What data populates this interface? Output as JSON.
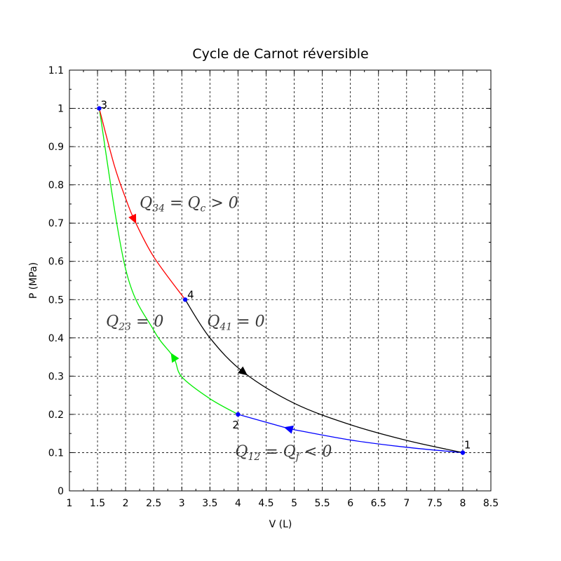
{
  "chart_data": {
    "type": "line",
    "title": "Cycle de Carnot réversible",
    "xlabel": "V (L)",
    "ylabel": "P (MPa)",
    "xlim": [
      1,
      8.5
    ],
    "ylim": [
      0,
      1.1
    ],
    "x_ticks": [
      1,
      1.5,
      2,
      2.5,
      3,
      3.5,
      4,
      4.5,
      5,
      5.5,
      6,
      6.5,
      7,
      7.5,
      8,
      8.5
    ],
    "x_tick_labels": [
      "1",
      "1.5",
      "2",
      "2.5",
      "3",
      "3.5",
      "4",
      "4.5",
      "5",
      "5.5",
      "6",
      "6.5",
      "7",
      "7.5",
      "8",
      "8.5"
    ],
    "y_ticks": [
      0,
      0.1,
      0.2,
      0.3,
      0.4,
      0.5,
      0.6,
      0.7,
      0.8,
      0.9,
      1,
      1.1
    ],
    "y_tick_labels": [
      "0",
      "0.1",
      "0.2",
      "0.3",
      "0.4",
      "0.5",
      "0.6",
      "0.7",
      "0.8",
      "0.9",
      "1",
      "1.1"
    ],
    "grid": true,
    "points": [
      {
        "label": "1",
        "x": 8,
        "y": 0.1
      },
      {
        "label": "2",
        "x": 4,
        "y": 0.2
      },
      {
        "label": "3",
        "x": 1.53,
        "y": 1.0
      },
      {
        "label": "4",
        "x": 3.06,
        "y": 0.5
      }
    ],
    "series": [
      {
        "from": "1",
        "to": "2",
        "process": "isotherm",
        "color": "#0000ff",
        "x": [
          8,
          7,
          6,
          5,
          4.9,
          4
        ],
        "y": [
          0.1,
          0.114,
          0.133,
          0.16,
          0.163,
          0.2
        ]
      },
      {
        "from": "2",
        "to": "3",
        "process": "adiabat",
        "color": "#00ee00",
        "x": [
          4,
          3.5,
          3,
          2.85,
          2.5,
          2,
          1.53
        ],
        "y": [
          0.2,
          0.241,
          0.298,
          0.35,
          0.42,
          0.58,
          1.0
        ]
      },
      {
        "from": "3",
        "to": "4",
        "process": "isotherm",
        "color": "#ff0000",
        "x": [
          1.53,
          1.8,
          2,
          2.15,
          2.5,
          3.06
        ],
        "y": [
          1.0,
          0.85,
          0.765,
          0.71,
          0.612,
          0.5
        ]
      },
      {
        "from": "4",
        "to": "1",
        "process": "adiabat",
        "color": "#000000",
        "x": [
          3.06,
          3.5,
          4.1,
          5,
          6,
          7,
          8
        ],
        "y": [
          0.5,
          0.4,
          0.31,
          0.229,
          0.173,
          0.132,
          0.1
        ]
      }
    ],
    "arrows": [
      {
        "series": 0,
        "x": 4.9,
        "y": 0.163
      },
      {
        "series": 1,
        "x": 2.85,
        "y": 0.35
      },
      {
        "series": 2,
        "x": 2.15,
        "y": 0.71
      },
      {
        "series": 3,
        "x": 4.1,
        "y": 0.31
      }
    ],
    "annotations": [
      {
        "id": "q34",
        "q": "Q",
        "sub": "34",
        "rest": "= Q",
        "sub2": "c",
        "tail": "> 0",
        "x": 2.25,
        "y": 0.74
      },
      {
        "id": "q23",
        "q": "Q",
        "sub": "23",
        "rest": "= 0",
        "sub2": "",
        "tail": "",
        "x": 1.65,
        "y": 0.43
      },
      {
        "id": "q41",
        "q": "Q",
        "sub": "41",
        "rest": "= 0",
        "sub2": "",
        "tail": "",
        "x": 3.45,
        "y": 0.43
      },
      {
        "id": "q12",
        "q": "Q",
        "sub": "12",
        "rest": "= Q",
        "sub2": "f",
        "tail": "< 0",
        "x": 3.95,
        "y": 0.09
      }
    ]
  }
}
